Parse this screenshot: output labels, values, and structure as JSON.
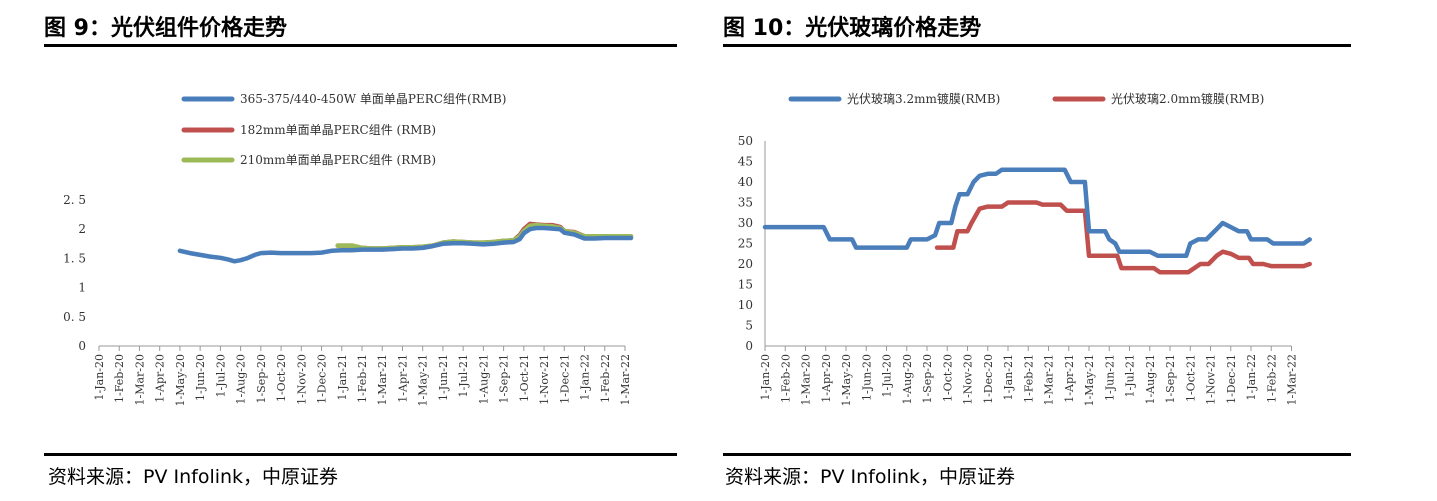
{
  "left": {
    "title": "图 9：光伏组件价格走势",
    "source": "资料来源：PV Infolink，中原证券",
    "chart_data": {
      "type": "line",
      "title": "",
      "xlabel": "",
      "ylabel": "",
      "ylim": [
        0,
        2.5
      ],
      "yticks": [
        "0",
        "0. 5",
        "1",
        "1. 5",
        "2",
        "2. 5"
      ],
      "categories": [
        "1-Jan-20",
        "1-Feb-20",
        "1-Mar-20",
        "1-Apr-20",
        "1-May-20",
        "1-Jun-20",
        "1-Jul-20",
        "1-Aug-20",
        "1-Sep-20",
        "1-Oct-20",
        "1-Nov-20",
        "1-Dec-20",
        "1-Jan-21",
        "1-Feb-21",
        "1-Mar-21",
        "1-Apr-21",
        "1-May-21",
        "1-Jun-21",
        "1-Jul-21",
        "1-Aug-21",
        "1-Sep-21",
        "1-Oct-21",
        "1-Nov-21",
        "1-Dec-21",
        "1-Jan-22",
        "1-Feb-22",
        "1-Mar-22"
      ],
      "grid": false,
      "legend_position": "top-left",
      "series": [
        {
          "name": "365-375/440-450W 单面单晶PERC组件(RMB)",
          "color": "#4a7ebb",
          "z": 3,
          "points": [
            [
              4.0,
              1.63
            ],
            [
              4.5,
              1.59
            ],
            [
              5.0,
              1.56
            ],
            [
              5.5,
              1.53
            ],
            [
              6.0,
              1.51
            ],
            [
              6.4,
              1.48
            ],
            [
              6.7,
              1.45
            ],
            [
              7.0,
              1.47
            ],
            [
              7.3,
              1.5
            ],
            [
              7.7,
              1.56
            ],
            [
              8.0,
              1.59
            ],
            [
              8.5,
              1.6
            ],
            [
              9.0,
              1.59
            ],
            [
              9.5,
              1.59
            ],
            [
              10.0,
              1.59
            ],
            [
              10.5,
              1.59
            ],
            [
              11.0,
              1.6
            ],
            [
              11.5,
              1.63
            ],
            [
              12.0,
              1.64
            ],
            [
              12.5,
              1.64
            ],
            [
              13.0,
              1.65
            ],
            [
              13.5,
              1.65
            ],
            [
              14.0,
              1.65
            ],
            [
              14.5,
              1.66
            ],
            [
              15.0,
              1.67
            ],
            [
              15.5,
              1.67
            ],
            [
              16.0,
              1.68
            ],
            [
              16.5,
              1.71
            ],
            [
              17.0,
              1.75
            ],
            [
              17.5,
              1.76
            ],
            [
              18.0,
              1.76
            ],
            [
              18.5,
              1.75
            ],
            [
              19.0,
              1.74
            ],
            [
              19.5,
              1.75
            ],
            [
              20.0,
              1.77
            ],
            [
              20.5,
              1.78
            ],
            [
              20.8,
              1.83
            ],
            [
              21.0,
              1.93
            ],
            [
              21.3,
              2.0
            ],
            [
              21.6,
              2.02
            ],
            [
              22.0,
              2.02
            ],
            [
              22.4,
              2.01
            ],
            [
              22.8,
              2.0
            ],
            [
              23.0,
              1.94
            ],
            [
              23.5,
              1.91
            ],
            [
              24.0,
              1.84
            ],
            [
              24.5,
              1.84
            ],
            [
              25.0,
              1.85
            ],
            [
              25.5,
              1.85
            ],
            [
              26.0,
              1.85
            ],
            [
              26.3,
              1.85
            ]
          ]
        },
        {
          "name": "182mm单面单晶PERC组件 (RMB)",
          "color": "#c0504d",
          "z": 1,
          "points": [
            [
              11.8,
              1.72
            ],
            [
              12.0,
              1.72
            ],
            [
              12.5,
              1.72
            ],
            [
              13.0,
              1.68
            ],
            [
              13.5,
              1.67
            ],
            [
              14.0,
              1.67
            ],
            [
              14.5,
              1.68
            ],
            [
              15.0,
              1.69
            ],
            [
              15.5,
              1.69
            ],
            [
              16.0,
              1.7
            ],
            [
              16.5,
              1.72
            ],
            [
              17.0,
              1.77
            ],
            [
              17.5,
              1.79
            ],
            [
              18.0,
              1.78
            ],
            [
              18.5,
              1.77
            ],
            [
              19.0,
              1.77
            ],
            [
              19.5,
              1.78
            ],
            [
              20.0,
              1.8
            ],
            [
              20.5,
              1.81
            ],
            [
              20.8,
              1.9
            ],
            [
              21.0,
              2.0
            ],
            [
              21.3,
              2.09
            ],
            [
              21.6,
              2.08
            ],
            [
              22.0,
              2.07
            ],
            [
              22.4,
              2.07
            ],
            [
              22.8,
              2.04
            ],
            [
              23.0,
              1.97
            ],
            [
              23.5,
              1.95
            ],
            [
              24.0,
              1.88
            ],
            [
              24.5,
              1.88
            ],
            [
              25.0,
              1.88
            ],
            [
              25.5,
              1.88
            ],
            [
              26.0,
              1.88
            ],
            [
              26.3,
              1.88
            ]
          ]
        },
        {
          "name": "210mm单面单晶PERC组件 (RMB)",
          "color": "#9bbb59",
          "z": 2,
          "points": [
            [
              11.8,
              1.72
            ],
            [
              12.0,
              1.72
            ],
            [
              12.5,
              1.72
            ],
            [
              13.0,
              1.68
            ],
            [
              13.5,
              1.67
            ],
            [
              14.0,
              1.67
            ],
            [
              14.5,
              1.68
            ],
            [
              15.0,
              1.69
            ],
            [
              15.5,
              1.69
            ],
            [
              16.0,
              1.7
            ],
            [
              16.5,
              1.72
            ],
            [
              17.0,
              1.77
            ],
            [
              17.5,
              1.79
            ],
            [
              18.0,
              1.78
            ],
            [
              18.5,
              1.77
            ],
            [
              19.0,
              1.77
            ],
            [
              19.5,
              1.78
            ],
            [
              20.0,
              1.8
            ],
            [
              20.5,
              1.81
            ],
            [
              20.8,
              1.88
            ],
            [
              21.0,
              1.97
            ],
            [
              21.3,
              2.06
            ],
            [
              21.6,
              2.07
            ],
            [
              22.0,
              2.06
            ],
            [
              22.4,
              2.05
            ],
            [
              22.8,
              2.02
            ],
            [
              23.0,
              1.97
            ],
            [
              23.5,
              1.94
            ],
            [
              24.0,
              1.88
            ],
            [
              24.5,
              1.88
            ],
            [
              25.0,
              1.88
            ],
            [
              25.5,
              1.88
            ],
            [
              26.0,
              1.88
            ],
            [
              26.3,
              1.88
            ]
          ]
        }
      ]
    }
  },
  "right": {
    "title": "图 10：光伏玻璃价格走势",
    "source": "资料来源：PV Infolink，中原证券",
    "chart_data": {
      "type": "line",
      "title": "",
      "xlabel": "",
      "ylabel": "",
      "ylim": [
        0,
        50
      ],
      "yticks": [
        "0",
        "5",
        "10",
        "15",
        "20",
        "25",
        "30",
        "35",
        "40",
        "45",
        "50"
      ],
      "categories": [
        "1-Jan-20",
        "1-Feb-20",
        "1-Mar-20",
        "1-Apr-20",
        "1-May-20",
        "1-Jun-20",
        "1-Jul-20",
        "1-Aug-20",
        "1-Sep-20",
        "1-Oct-20",
        "1-Nov-20",
        "1-Dec-20",
        "1-Jan-21",
        "1-Feb-21",
        "1-Mar-21",
        "1-Apr-21",
        "1-May-21",
        "1-Jun-21",
        "1-Jul-21",
        "1-Aug-21",
        "1-Sep-21",
        "1-Oct-21",
        "1-Nov-21",
        "1-Dec-21",
        "1-Jan-22",
        "1-Feb-22",
        "1-Mar-22"
      ],
      "grid": false,
      "legend_position": "top",
      "series": [
        {
          "name": "光伏玻璃3.2mm镀膜(RMB)",
          "color": "#4a7ebb",
          "z": 2,
          "points": [
            [
              0,
              29
            ],
            [
              1,
              29
            ],
            [
              2,
              29
            ],
            [
              2.9,
              29
            ],
            [
              3.2,
              26
            ],
            [
              4,
              26
            ],
            [
              4.3,
              26
            ],
            [
              4.5,
              24
            ],
            [
              5,
              24
            ],
            [
              6,
              24
            ],
            [
              7,
              24
            ],
            [
              7.2,
              26
            ],
            [
              8,
              26
            ],
            [
              8.4,
              27
            ],
            [
              8.6,
              30
            ],
            [
              9,
              30
            ],
            [
              9.2,
              30
            ],
            [
              9.4,
              34
            ],
            [
              9.6,
              37
            ],
            [
              10,
              37
            ],
            [
              10.3,
              40
            ],
            [
              10.6,
              41.5
            ],
            [
              11,
              42
            ],
            [
              11.4,
              42
            ],
            [
              11.7,
              43
            ],
            [
              12,
              43
            ],
            [
              13,
              43
            ],
            [
              14,
              43
            ],
            [
              14.8,
              43
            ],
            [
              15.1,
              40
            ],
            [
              15.8,
              40
            ],
            [
              16,
              28
            ],
            [
              16.8,
              28
            ],
            [
              17,
              26
            ],
            [
              17.3,
              25
            ],
            [
              17.5,
              23
            ],
            [
              18,
              23
            ],
            [
              19,
              23
            ],
            [
              19.4,
              22
            ],
            [
              20,
              22
            ],
            [
              20.8,
              22
            ],
            [
              21,
              25
            ],
            [
              21.4,
              26
            ],
            [
              21.8,
              26
            ],
            [
              22.3,
              28.5
            ],
            [
              22.6,
              30
            ],
            [
              23,
              29
            ],
            [
              23.4,
              28
            ],
            [
              23.8,
              28
            ],
            [
              24,
              26
            ],
            [
              24.5,
              26
            ],
            [
              24.8,
              26
            ],
            [
              25.1,
              25
            ],
            [
              25.5,
              25
            ],
            [
              26,
              25
            ],
            [
              26.6,
              25
            ],
            [
              26.9,
              26
            ]
          ]
        },
        {
          "name": "光伏玻璃2.0mm镀膜(RMB)",
          "color": "#c0504d",
          "z": 1,
          "points": [
            [
              8.5,
              24
            ],
            [
              9,
              24
            ],
            [
              9.3,
              24
            ],
            [
              9.5,
              28
            ],
            [
              10,
              28
            ],
            [
              10.2,
              30
            ],
            [
              10.6,
              33.5
            ],
            [
              11,
              34
            ],
            [
              11.7,
              34
            ],
            [
              12,
              35
            ],
            [
              13,
              35
            ],
            [
              13.4,
              35
            ],
            [
              13.7,
              34.5
            ],
            [
              14,
              34.5
            ],
            [
              14.6,
              34.5
            ],
            [
              14.9,
              33
            ],
            [
              15.5,
              33
            ],
            [
              15.8,
              33
            ],
            [
              16,
              22
            ],
            [
              17,
              22
            ],
            [
              17.4,
              22
            ],
            [
              17.6,
              19
            ],
            [
              18,
              19
            ],
            [
              19,
              19
            ],
            [
              19.2,
              19
            ],
            [
              19.5,
              18
            ],
            [
              20,
              18
            ],
            [
              20.9,
              18
            ],
            [
              21.2,
              19
            ],
            [
              21.5,
              20
            ],
            [
              21.9,
              20
            ],
            [
              22.3,
              22
            ],
            [
              22.6,
              23
            ],
            [
              23,
              22.5
            ],
            [
              23.4,
              21.5
            ],
            [
              23.9,
              21.5
            ],
            [
              24.1,
              20
            ],
            [
              24.6,
              20
            ],
            [
              25,
              19.5
            ],
            [
              25.5,
              19.5
            ],
            [
              26,
              19.5
            ],
            [
              26.6,
              19.5
            ],
            [
              26.9,
              20
            ]
          ]
        }
      ]
    }
  }
}
